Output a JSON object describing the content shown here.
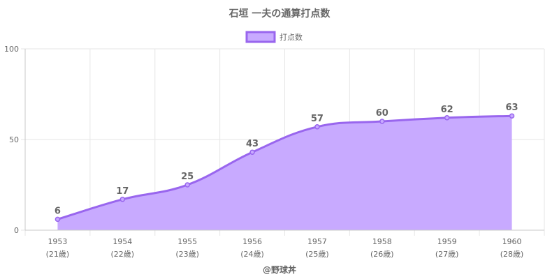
{
  "chart_data": {
    "type": "area",
    "title": "石垣 一夫の通算打点数",
    "xlabel": "@野球丼",
    "ylabel": "",
    "categories": [
      "1953",
      "1954",
      "1955",
      "1956",
      "1957",
      "1958",
      "1959",
      "1960"
    ],
    "sub_categories": [
      "(21歳)",
      "(22歳)",
      "(23歳)",
      "(24歳)",
      "(25歳)",
      "(26歳)",
      "(27歳)",
      "(28歳)"
    ],
    "series": [
      {
        "name": "打点数",
        "values": [
          6,
          17,
          25,
          43,
          57,
          60,
          62,
          63
        ]
      }
    ],
    "ylim": [
      0,
      100
    ],
    "yticks": [
      0,
      50,
      100
    ],
    "grid": true,
    "legend_position": "top",
    "colors": {
      "line": "#9966ee",
      "fill": "#c8aaff",
      "grid": "#e6e6e6",
      "axis": "#c8c8c8",
      "text": "#666666"
    }
  }
}
